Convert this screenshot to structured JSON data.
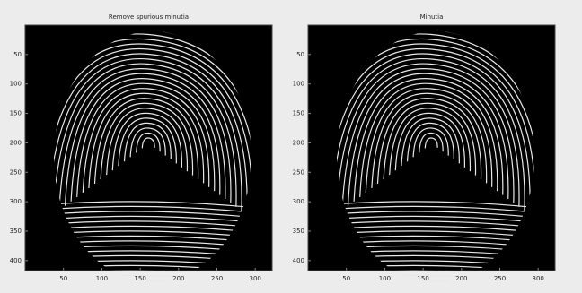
{
  "chart_data": [
    {
      "type": "image",
      "title": "Remove spurious minutia",
      "xlim": [
        0,
        322
      ],
      "ylim": [
        0,
        417
      ],
      "xticks": [
        50,
        100,
        150,
        200,
        250,
        300
      ],
      "yticks": [
        50,
        100,
        150,
        200,
        250,
        300,
        350,
        400
      ]
    },
    {
      "type": "image",
      "title": "Minutia",
      "xlim": [
        0,
        322
      ],
      "ylim": [
        0,
        417
      ],
      "xticks": [
        50,
        100,
        150,
        200,
        250,
        300
      ],
      "yticks": [
        50,
        100,
        150,
        200,
        250,
        300,
        350,
        400
      ]
    }
  ]
}
